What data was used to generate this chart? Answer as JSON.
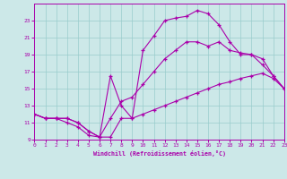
{
  "xlabel": "Windchill (Refroidissement éolien,°C)",
  "xlim": [
    0,
    23
  ],
  "ylim": [
    9,
    25
  ],
  "yticks": [
    9,
    11,
    13,
    15,
    17,
    19,
    21,
    23
  ],
  "xticks": [
    0,
    1,
    2,
    3,
    4,
    5,
    6,
    7,
    8,
    9,
    10,
    11,
    12,
    13,
    14,
    15,
    16,
    17,
    18,
    19,
    20,
    21,
    22,
    23
  ],
  "bg_color": "#cce8e8",
  "line_color": "#aa00aa",
  "grid_color": "#99cccc",
  "line1_y": [
    12.0,
    11.5,
    11.5,
    11.0,
    10.5,
    9.5,
    9.3,
    9.3,
    11.5,
    11.5,
    12.0,
    12.5,
    13.0,
    13.5,
    14.0,
    14.5,
    15.0,
    15.5,
    15.8,
    16.2,
    16.5,
    16.8,
    16.2,
    15.0
  ],
  "line2_y": [
    12.0,
    11.5,
    11.5,
    11.5,
    11.0,
    10.0,
    9.3,
    11.5,
    13.5,
    14.0,
    15.5,
    17.0,
    18.5,
    19.5,
    20.5,
    20.5,
    20.0,
    20.5,
    19.5,
    19.2,
    19.0,
    17.8,
    16.5,
    15.0
  ],
  "line3_y": [
    12.0,
    11.5,
    11.5,
    11.5,
    11.0,
    10.0,
    9.3,
    16.5,
    13.0,
    11.5,
    19.5,
    21.2,
    23.0,
    23.3,
    23.5,
    24.2,
    23.8,
    22.5,
    20.5,
    19.0,
    19.0,
    18.5,
    16.5,
    15.0
  ]
}
